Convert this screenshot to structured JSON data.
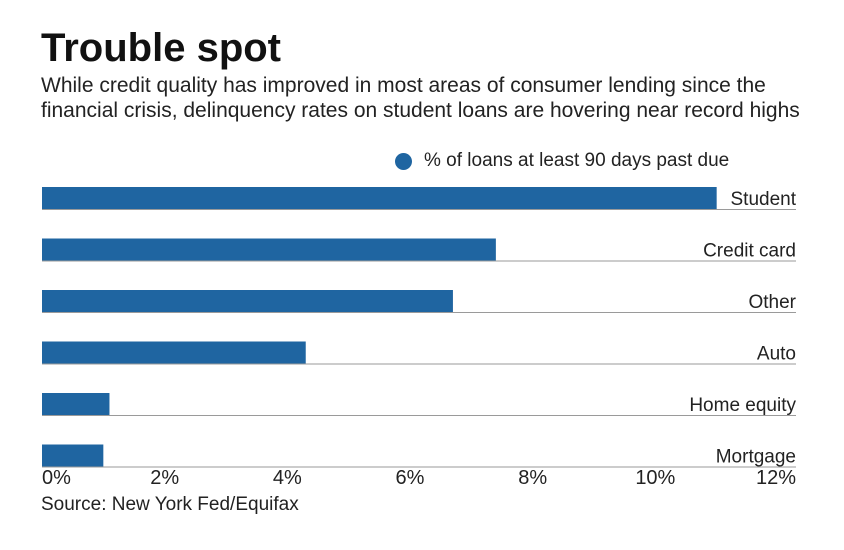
{
  "title": "Trouble spot",
  "subtitle": "While credit quality has improved in most areas of consumer lending since the financial crisis, delinquency rates on student loans are hovering near record highs",
  "source": "Source: New York Fed/Equifax",
  "colors": {
    "bar": "#1f65a1",
    "rule": "#9a9a9a",
    "text": "#222222"
  },
  "chart_data": {
    "type": "bar",
    "orientation": "horizontal",
    "categories": [
      "Student",
      "Credit card",
      "Other",
      "Auto",
      "Home equity",
      "Mortgage"
    ],
    "series": [
      {
        "name": "% of loans at least 90 days past due",
        "values": [
          11.0,
          7.4,
          6.7,
          4.3,
          1.1,
          1.0
        ]
      }
    ],
    "xlim": [
      0,
      12
    ],
    "x_ticks": [
      "0%",
      "2%",
      "4%",
      "6%",
      "8%",
      "10%",
      "12%"
    ],
    "legend_position": "top-right",
    "grid": false
  }
}
